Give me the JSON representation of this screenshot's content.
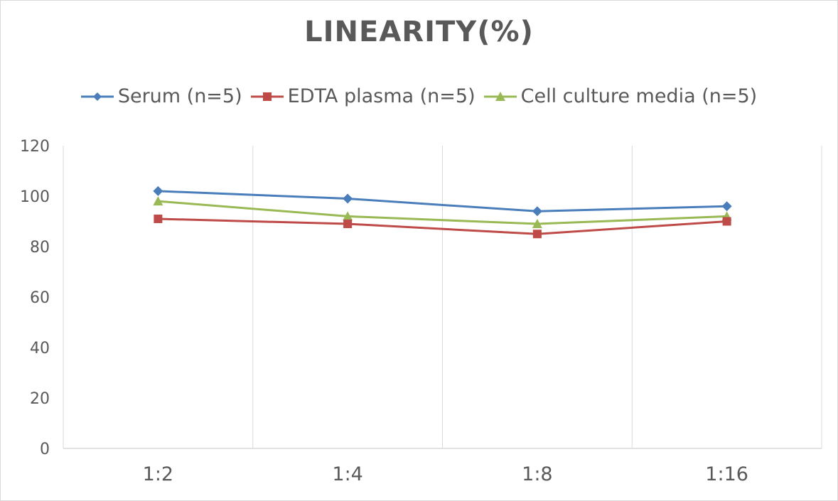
{
  "chart_data": {
    "type": "line",
    "title": "LINEARITY(%)",
    "xlabel": "",
    "ylabel": "",
    "categories": [
      "1:2",
      "1:4",
      "1:8",
      "1:16"
    ],
    "ylim": [
      0,
      120
    ],
    "yticks": [
      0,
      20,
      40,
      60,
      80,
      100,
      120
    ],
    "grid": "vertical",
    "legend_position": "top",
    "series": [
      {
        "name": "Serum (n=5)",
        "values": [
          102,
          99,
          94,
          96
        ],
        "color": "#4a7ebb",
        "marker": "diamond"
      },
      {
        "name": "EDTA plasma (n=5)",
        "values": [
          91,
          89,
          85,
          90
        ],
        "color": "#be4b48",
        "marker": "square"
      },
      {
        "name": "Cell culture media (n=5)",
        "values": [
          98,
          92,
          89,
          92
        ],
        "color": "#98b954",
        "marker": "triangle"
      }
    ]
  }
}
